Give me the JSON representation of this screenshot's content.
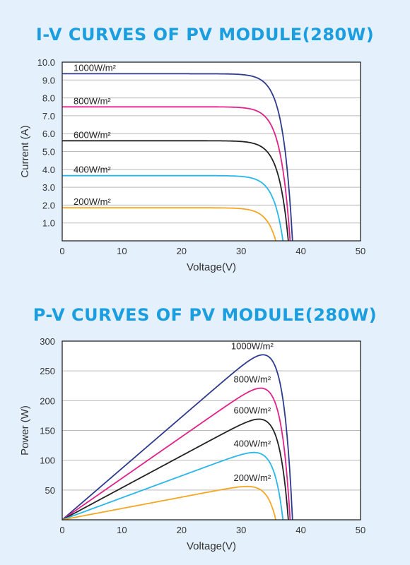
{
  "chart_data": [
    {
      "type": "line",
      "title": "I-V CURVES OF PV MODULE(280W)",
      "xlabel": "Voltage(V)",
      "ylabel": "Current (A)",
      "xlim": [
        0,
        50
      ],
      "ylim": [
        0,
        10
      ],
      "x_ticks": [
        "0",
        "10",
        "20",
        "30",
        "40",
        "50"
      ],
      "y_ticks": [
        "1.0",
        "2.0",
        "3.0",
        "4.0",
        "5.0",
        "6.0",
        "7.0",
        "8.0",
        "9.0",
        "10.0"
      ],
      "grid": true,
      "series": [
        {
          "name": "1000W/m²",
          "color": "#2e3a8c",
          "isc": 9.35,
          "voc": 38.6,
          "knee": 28.5,
          "x": [
            0,
            28.5,
            33,
            36,
            37.5,
            38.6
          ],
          "y": [
            9.35,
            9.3,
            8.5,
            5.5,
            2.8,
            0
          ]
        },
        {
          "name": "800W/m²",
          "color": "#e0218a",
          "isc": 7.5,
          "voc": 38.2,
          "knee": 28.5,
          "x": [
            0,
            28.5,
            33,
            36,
            37.2,
            38.2
          ],
          "y": [
            7.5,
            7.48,
            6.8,
            4.4,
            2.2,
            0
          ]
        },
        {
          "name": "600W/m²",
          "color": "#222222",
          "isc": 5.6,
          "voc": 37.9,
          "knee": 28.5,
          "x": [
            0,
            28.5,
            33,
            36,
            37,
            37.9
          ],
          "y": [
            5.6,
            5.58,
            5.1,
            3.3,
            1.7,
            0
          ]
        },
        {
          "name": "400W/m²",
          "color": "#29b6e8",
          "isc": 3.65,
          "voc": 37.0,
          "knee": 29,
          "x": [
            0,
            29,
            33,
            35.5,
            36.3,
            37
          ],
          "y": [
            3.65,
            3.63,
            3.3,
            2.1,
            1.1,
            0
          ]
        },
        {
          "name": "200W/m²",
          "color": "#f5a623",
          "isc": 1.85,
          "voc": 35.8,
          "knee": 29.5,
          "x": [
            0,
            29.5,
            33,
            34.8,
            35.3,
            35.8
          ],
          "y": [
            1.85,
            1.84,
            1.65,
            1.05,
            0.55,
            0
          ]
        }
      ]
    },
    {
      "type": "line",
      "title": "P-V CURVES OF PV MODULE(280W)",
      "xlabel": "Voltage(V)",
      "ylabel": "Power (W)",
      "xlim": [
        0,
        50
      ],
      "ylim": [
        0,
        300
      ],
      "x_ticks": [
        "0",
        "10",
        "20",
        "30",
        "40",
        "50"
      ],
      "y_ticks": [
        "50",
        "100",
        "150",
        "200",
        "250",
        "300"
      ],
      "grid": true,
      "series": [
        {
          "name": "1000W/m²",
          "color": "#2e3a8c",
          "vmp": 31.5,
          "pmax": 277,
          "voc": 38.6
        },
        {
          "name": "800W/m²",
          "color": "#e0218a",
          "vmp": 31.5,
          "pmax": 221,
          "voc": 38.2
        },
        {
          "name": "600W/m²",
          "color": "#222222",
          "vmp": 31.5,
          "pmax": 169,
          "voc": 37.9
        },
        {
          "name": "400W/m²",
          "color": "#29b6e8",
          "vmp": 31.5,
          "pmax": 113,
          "voc": 37.0
        },
        {
          "name": "200W/m²",
          "color": "#f5a623",
          "vmp": 31.5,
          "pmax": 56,
          "voc": 35.8
        }
      ]
    }
  ]
}
